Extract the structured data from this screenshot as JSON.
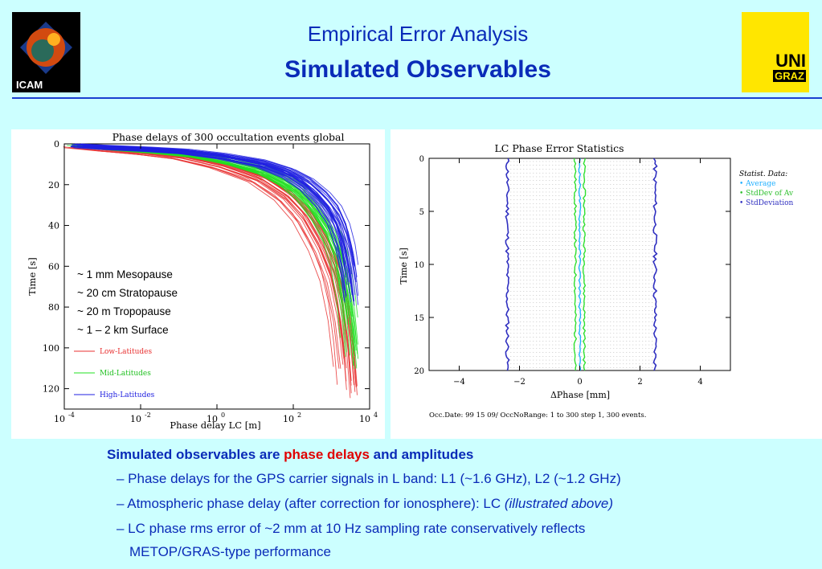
{
  "header": {
    "logo_left_label": "ICAM",
    "logo_right_line1": "UNI",
    "logo_right_line2": "GRAZ",
    "title": "Empirical Error Analysis",
    "subtitle": "Simulated Observables"
  },
  "colors": {
    "title_blue": "#0a2bb8",
    "background": "#ccffff",
    "highlight_red": "#e00000",
    "logo_yellow": "#ffe600"
  },
  "left_chart": {
    "chart_data": {
      "type": "line",
      "title": "Phase delays of 300 occultation events global",
      "xlabel": "Phase delay LC [m]",
      "ylabel": "Time [s]",
      "x_scale": "log",
      "xlim": [
        0.0001,
        10000
      ],
      "ylim": [
        0,
        130
      ],
      "x_ticks": [
        "10-4",
        "10-2",
        "100",
        "102",
        "104"
      ],
      "y_ticks": [
        "0",
        "20",
        "40",
        "60",
        "80",
        "100",
        "120"
      ],
      "series": [
        {
          "name": "Low-Latitudes",
          "color": "#e83030",
          "example_curves": [
            [
              0.0002,
              0
            ],
            [
              0.01,
              3
            ],
            [
              1,
              10
            ],
            [
              50,
              25
            ],
            [
              500,
              60
            ],
            [
              1500,
              100
            ],
            [
              2000,
              120
            ]
          ]
        },
        {
          "name": "Mid-Latitudes",
          "color": "#20e020",
          "example_curves": [
            [
              0.0002,
              0
            ],
            [
              0.01,
              3
            ],
            [
              1,
              10
            ],
            [
              50,
              25
            ],
            [
              600,
              50
            ],
            [
              1500,
              70
            ]
          ]
        },
        {
          "name": "High-Latitudes",
          "color": "#2020e0",
          "example_curves": [
            [
              0.0002,
              0
            ],
            [
              0.01,
              2
            ],
            [
              1,
              8
            ],
            [
              50,
              18
            ],
            [
              800,
              35
            ],
            [
              2000,
              60
            ]
          ]
        }
      ]
    },
    "annotations": [
      "~ 1 mm Mesopause",
      "~ 20 cm Stratopause",
      "~ 20 m Tropopause",
      "~ 1 – 2 km Surface"
    ]
  },
  "right_chart": {
    "chart_data": {
      "type": "line",
      "title": "LC Phase Error Statistics",
      "xlabel": "ΔPhase [mm]",
      "ylabel": "Time [s]",
      "xlim": [
        -5,
        5
      ],
      "ylim": [
        0,
        20
      ],
      "x_ticks": [
        "−4",
        "−2",
        "0",
        "2",
        "4"
      ],
      "y_ticks": [
        "0",
        "5",
        "10",
        "15",
        "20"
      ],
      "legend_title": "Statist. Data:",
      "legend_position": "right",
      "series": [
        {
          "name": "Average",
          "color": "#20b0ff",
          "x_center": 0.0
        },
        {
          "name": "StdDev of Av",
          "color": "#30e030",
          "x_centers": [
            -0.15,
            0.15
          ]
        },
        {
          "name": "StdDeviation",
          "color": "#3030c0",
          "x_centers": [
            -2.4,
            2.5
          ]
        }
      ],
      "footnote": "Occ.Date: 99 15 09/   OccNoRange:   1 to 300 step 1, 300 events."
    }
  },
  "bottom_text": {
    "heading_part1": "Simulated observables are ",
    "heading_red": "phase delays",
    "heading_part2": " and amplitudes",
    "bullet1": "– Phase delays for the GPS carrier signals in L band:  L1 (~1.6 GHz), L2 (~1.2 GHz)",
    "bullet2_main": "– Atmospheric phase delay (after correction for ionosphere): LC ",
    "bullet2_italic": "(illustrated above)",
    "bullet3_line1": "– LC phase rms error of ~2 mm at 10 Hz sampling rate conservatively reflects",
    "bullet3_line2": "METOP/GRAS-type performance"
  }
}
